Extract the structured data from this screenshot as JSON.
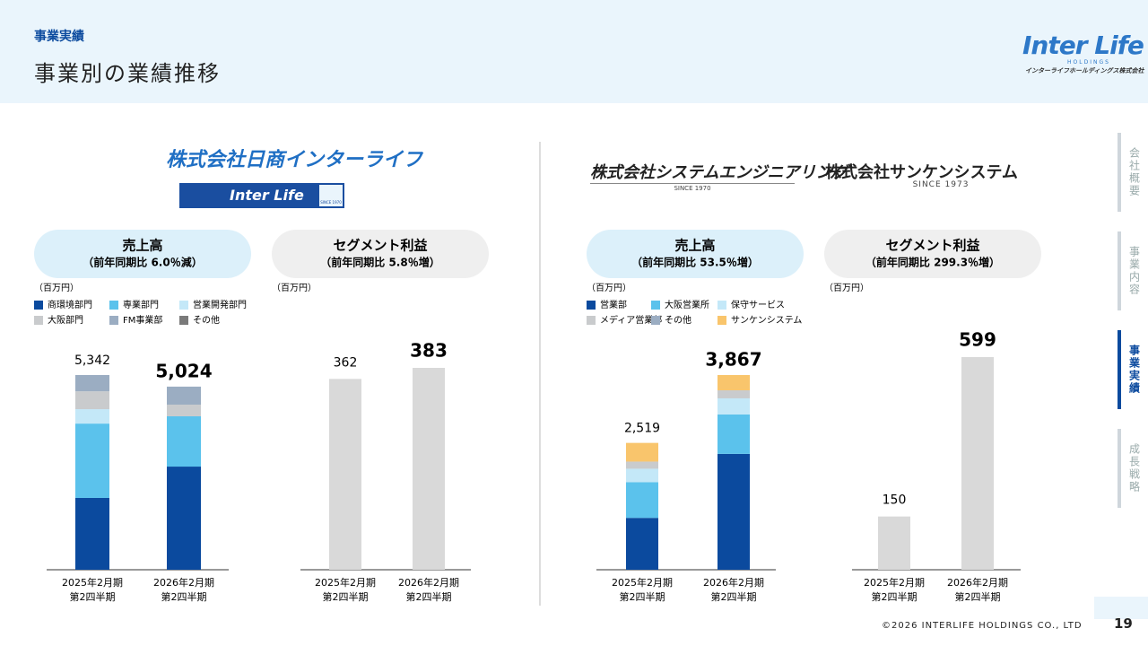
{
  "header": {
    "section": "事業実績",
    "title": "事業別の業績推移",
    "logo": {
      "name": "Inter Life",
      "sub": "HOLDINGS",
      "company": "インターライフホールディングス株式会社"
    }
  },
  "sidebar": {
    "items": [
      "会社概要",
      "事業内容",
      "事業実績",
      "成長戦略"
    ],
    "active": 2
  },
  "logos": {
    "nissho": {
      "name": "株式会社日商インターライフ",
      "banner": "Inter Life",
      "since": "SINCE 1970"
    },
    "system": {
      "name": "株式会社システムエンジニアリング",
      "since": "SINCE 1970"
    },
    "sanken": {
      "name": "株式会社サンケンシステム",
      "since": "SINCE 1973"
    }
  },
  "footer": {
    "copyright": "©2026 INTERLIFE HOLDINGS CO., LTD",
    "page": "19"
  },
  "chart_data": [
    {
      "type": "stacked_bar",
      "title": "売上高",
      "subtitle": "（前年同期比 6.0％減）",
      "unit": "（百万円）",
      "categories": [
        [
          "2025年2月期",
          "第2四半期"
        ],
        [
          "2026年2月期",
          "第2四半期"
        ]
      ],
      "series": [
        {
          "name": "商環境部門",
          "color": "#0b4a9e",
          "values": [
            1970,
            2830
          ]
        },
        {
          "name": "専業部門",
          "color": "#5bc2ec",
          "values": [
            2040,
            1380
          ]
        },
        {
          "name": "営業開発部門",
          "color": "#c4e8f8",
          "values": [
            395,
            0
          ]
        },
        {
          "name": "大阪部門",
          "color": "#c9cbcd",
          "values": [
            490,
            320
          ]
        },
        {
          "name": "FM事業部",
          "color": "#9badc2",
          "values": [
            447,
            494
          ]
        },
        {
          "name": "その他",
          "color": "#7a7a7a",
          "values": [
            0,
            0
          ]
        }
      ],
      "totals": [
        5342,
        5024
      ],
      "total_labels": [
        "5,342",
        "5,024"
      ]
    },
    {
      "type": "bar",
      "title": "セグメント利益",
      "subtitle": "（前年同期比 5.8％増）",
      "unit": "（百万円）",
      "categories": [
        [
          "2025年2月期",
          "第2四半期"
        ],
        [
          "2026年2月期",
          "第2四半期"
        ]
      ],
      "values": [
        362,
        383
      ],
      "color": "#d9d9d9"
    },
    {
      "type": "stacked_bar",
      "title": "売上高",
      "subtitle": "（前年同期比 53.5％増）",
      "unit": "（百万円）",
      "categories": [
        [
          "2025年2月期",
          "第2四半期"
        ],
        [
          "2026年2月期",
          "第2四半期"
        ]
      ],
      "series": [
        {
          "name": "営業部",
          "color": "#0b4a9e",
          "values": [
            1030,
            2301
          ]
        },
        {
          "name": "大阪営業所",
          "color": "#5bc2ec",
          "values": [
            710,
            783
          ]
        },
        {
          "name": "保守サービス",
          "color": "#c4e8f8",
          "values": [
            266,
            320
          ]
        },
        {
          "name": "メディア営業部",
          "color": "#c9cbcd",
          "values": [
            142,
            160
          ]
        },
        {
          "name": "その他",
          "color": "#9badc2",
          "values": [
            0,
            0
          ]
        },
        {
          "name": "サンケンシステム",
          "color": "#f9c56c",
          "values": [
            371,
            303
          ]
        }
      ],
      "totals": [
        2519,
        3867
      ],
      "total_labels": [
        "2,519",
        "3,867"
      ]
    },
    {
      "type": "bar",
      "title": "セグメント利益",
      "subtitle": "（前年同期比 299.3％増）",
      "unit": "（百万円）",
      "categories": [
        [
          "2025年2月期",
          "第2四半期"
        ],
        [
          "2026年2月期",
          "第2四半期"
        ]
      ],
      "values": [
        150,
        599
      ],
      "color": "#d9d9d9"
    }
  ]
}
